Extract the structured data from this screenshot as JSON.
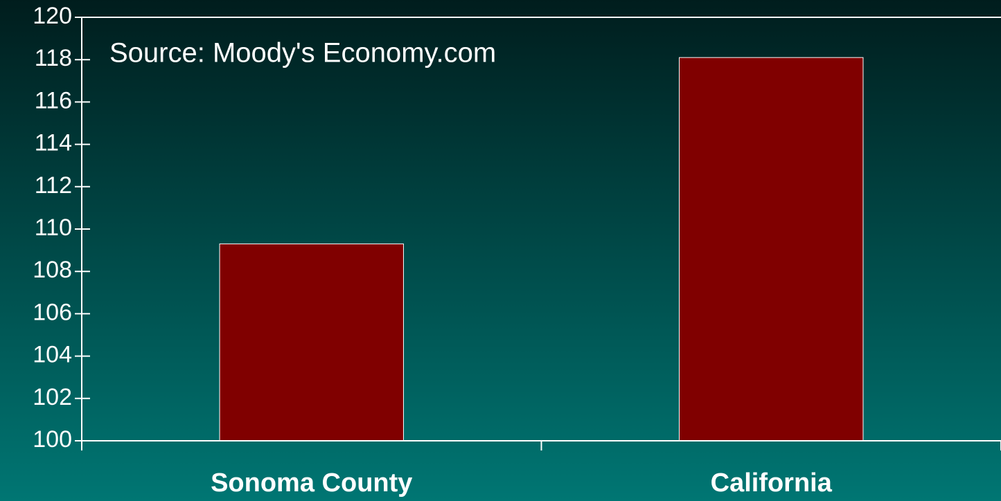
{
  "chart_data": {
    "type": "bar",
    "annotation": "Source: Moody's Economy.com",
    "categories": [
      "Sonoma County",
      "California"
    ],
    "values": [
      109.3,
      118.1
    ],
    "color": "#800000",
    "ylim": [
      100,
      120
    ],
    "yticks": [
      100,
      102,
      104,
      106,
      108,
      110,
      112,
      114,
      116,
      118,
      120
    ]
  }
}
